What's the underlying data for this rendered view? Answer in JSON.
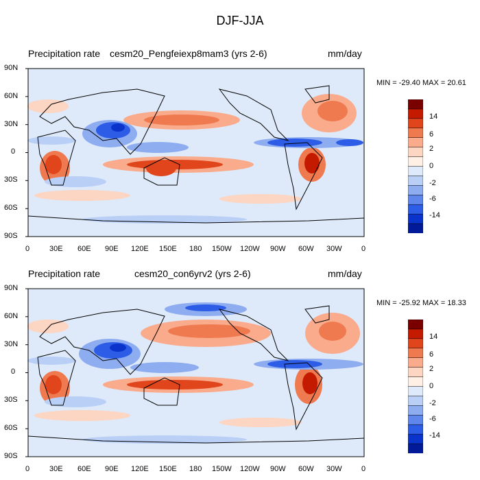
{
  "figure": {
    "title": "DJF-JJA"
  },
  "lat_labels": [
    "90N",
    "60N",
    "30N",
    "0",
    "30S",
    "60S",
    "90S"
  ],
  "lon_labels": [
    "0",
    "30E",
    "60E",
    "90E",
    "120E",
    "150E",
    "180",
    "150W",
    "120W",
    "90W",
    "60W",
    "30W",
    "0"
  ],
  "colorbar": {
    "levels": [
      "14",
      "6",
      "2",
      "0",
      "-2",
      "-6",
      "-14"
    ],
    "colors": [
      "#7a0000",
      "#c41a00",
      "#e0451c",
      "#f07a4f",
      "#f9ab8c",
      "#fdd5c3",
      "#fff0e6",
      "#deeafa",
      "#b9cff6",
      "#8eacf0",
      "#5f86eb",
      "#2d5de6",
      "#0a33cc",
      "#001a99"
    ]
  },
  "panels": [
    {
      "left_title": "Precipitation rate",
      "center_title": "cesm20_Pengfeiexp8mam3 (yrs 2-6)",
      "units": "mm/day",
      "stats": "MIN = -29.40 MAX =  20.61"
    },
    {
      "left_title": "Precipitation rate",
      "center_title": "cesm20_con6yrv2 (yrs 2-6)",
      "units": "mm/day",
      "stats": "MIN = -25.92 MAX =  18.33"
    }
  ]
}
